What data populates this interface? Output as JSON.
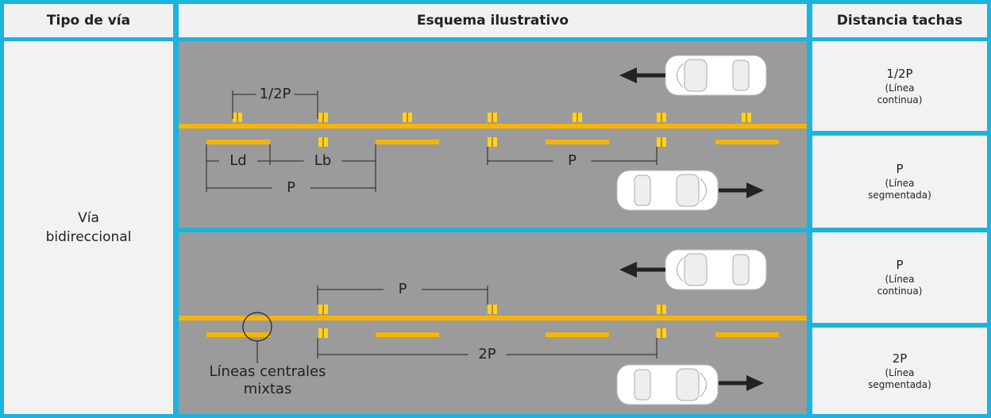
{
  "header": {
    "col1": "Tipo de vía",
    "col2": "Esquema ilustrativo",
    "col3": "Distancia tachas"
  },
  "road_type": "Vía bidireccional",
  "scheme_1": {
    "labels": [
      "1/2P",
      "Ld",
      "Lb",
      "P",
      "P"
    ]
  },
  "scheme_2": {
    "labels": [
      "P",
      "2P"
    ],
    "note": "Líneas centrales mixtas"
  },
  "distances": [
    {
      "value": "1/2P",
      "note": "(Línea continua)"
    },
    {
      "value": "P",
      "note": "(Línea segmentada)"
    },
    {
      "value": "P",
      "note": "(Línea continua)"
    },
    {
      "value": "2P",
      "note": "(Línea segmentada)"
    }
  ]
}
